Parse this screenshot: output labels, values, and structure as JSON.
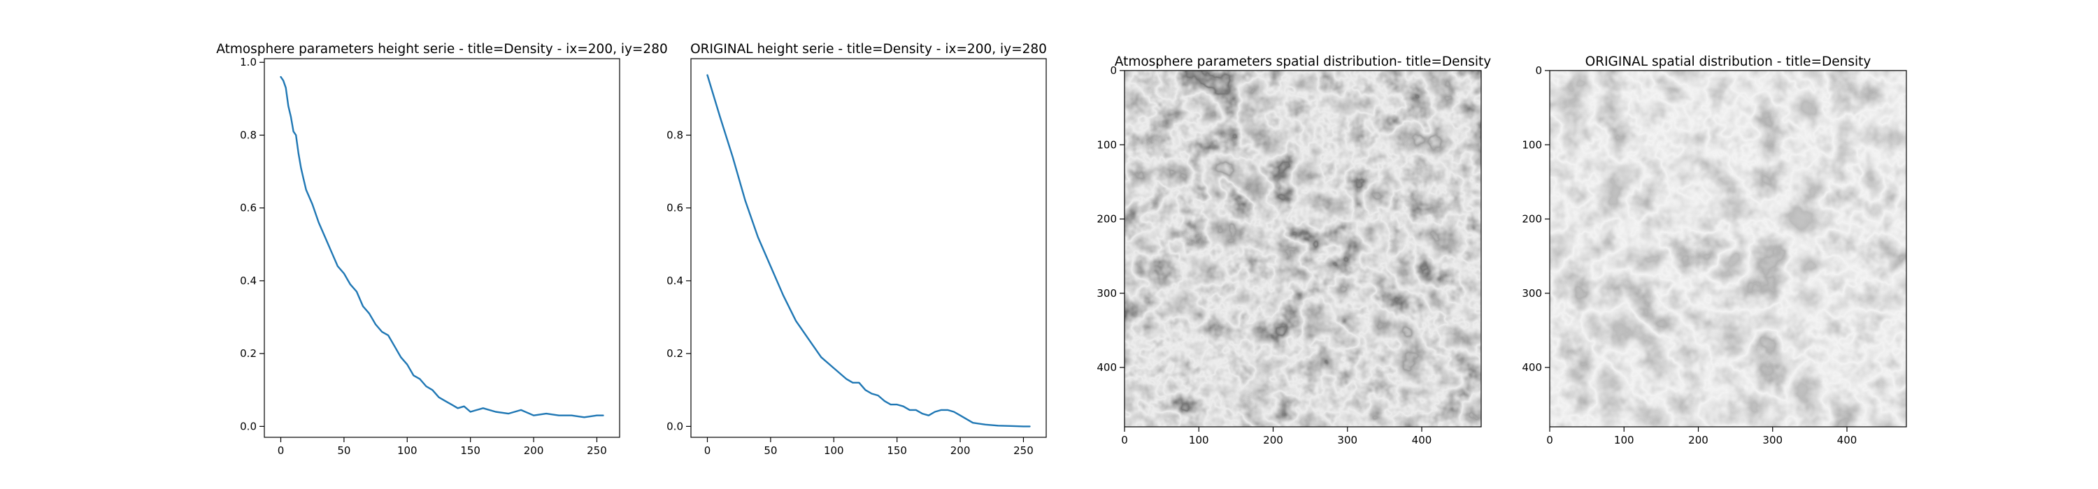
{
  "chart_data": [
    {
      "id": "left-line",
      "type": "line",
      "title": "Atmosphere parameters height serie - title=Density - ix=200, iy=280",
      "xlabel": "",
      "ylabel": "",
      "xlim": [
        -13,
        268
      ],
      "ylim": [
        -0.03,
        1.01
      ],
      "xticks": [
        0,
        50,
        100,
        150,
        200,
        250
      ],
      "yticks": [
        0.0,
        0.2,
        0.4,
        0.6,
        0.8,
        1.0
      ],
      "ytick_labels": [
        "0.0",
        "0.2",
        "0.4",
        "0.6",
        "0.8",
        "1.0"
      ],
      "grid": false,
      "legend": "none",
      "series_color": "#1f77b4",
      "x": [
        0,
        2,
        4,
        6,
        8,
        10,
        12,
        14,
        16,
        18,
        20,
        25,
        30,
        35,
        40,
        45,
        50,
        55,
        60,
        65,
        70,
        75,
        80,
        85,
        90,
        95,
        100,
        105,
        110,
        115,
        120,
        125,
        130,
        135,
        140,
        145,
        150,
        155,
        160,
        170,
        180,
        190,
        200,
        210,
        220,
        230,
        240,
        250,
        255
      ],
      "y": [
        0.96,
        0.95,
        0.93,
        0.88,
        0.85,
        0.81,
        0.8,
        0.75,
        0.71,
        0.68,
        0.65,
        0.61,
        0.56,
        0.52,
        0.48,
        0.44,
        0.42,
        0.39,
        0.37,
        0.33,
        0.31,
        0.28,
        0.26,
        0.25,
        0.22,
        0.19,
        0.17,
        0.14,
        0.13,
        0.11,
        0.1,
        0.08,
        0.07,
        0.06,
        0.05,
        0.055,
        0.04,
        0.045,
        0.05,
        0.04,
        0.035,
        0.045,
        0.03,
        0.035,
        0.03,
        0.03,
        0.025,
        0.03,
        0.03
      ]
    },
    {
      "id": "mid-line",
      "type": "line",
      "title": "ORIGINAL height serie - title=Density - ix=200, iy=280",
      "xlabel": "",
      "ylabel": "",
      "xlim": [
        -13,
        268
      ],
      "ylim": [
        -0.03,
        1.01
      ],
      "xticks": [
        0,
        50,
        100,
        150,
        200,
        250
      ],
      "yticks": [
        0.0,
        0.2,
        0.4,
        0.6,
        0.8
      ],
      "ytick_labels": [
        "0.0",
        "0.2",
        "0.4",
        "0.6",
        "0.8"
      ],
      "grid": false,
      "legend": "none",
      "series_color": "#1f77b4",
      "x": [
        0,
        10,
        20,
        30,
        40,
        50,
        60,
        70,
        80,
        90,
        100,
        110,
        115,
        120,
        125,
        130,
        135,
        140,
        145,
        150,
        155,
        160,
        165,
        170,
        175,
        180,
        185,
        190,
        195,
        200,
        205,
        210,
        220,
        230,
        240,
        250,
        255
      ],
      "y": [
        0.965,
        0.85,
        0.74,
        0.62,
        0.52,
        0.44,
        0.36,
        0.29,
        0.24,
        0.19,
        0.16,
        0.13,
        0.12,
        0.12,
        0.1,
        0.09,
        0.085,
        0.07,
        0.06,
        0.06,
        0.055,
        0.045,
        0.045,
        0.035,
        0.03,
        0.04,
        0.045,
        0.045,
        0.04,
        0.03,
        0.02,
        0.01,
        0.005,
        0.002,
        0.001,
        0.0,
        0.0
      ]
    },
    {
      "id": "left-image",
      "type": "heatmap",
      "title": "Atmosphere parameters spatial distribution- title=Density",
      "xlim": [
        0,
        480
      ],
      "ylim": [
        480,
        0
      ],
      "xticks": [
        0,
        100,
        200,
        300,
        400
      ],
      "yticks": [
        0,
        100,
        200,
        300,
        400
      ],
      "colormap": "gray",
      "seed": 3
    },
    {
      "id": "right-image",
      "type": "heatmap",
      "title": "ORIGINAL spatial distribution - title=Density",
      "xlim": [
        0,
        480
      ],
      "ylim": [
        480,
        0
      ],
      "xticks": [
        0,
        100,
        200,
        300,
        400
      ],
      "yticks": [
        0,
        100,
        200,
        300,
        400
      ],
      "colormap": "gray",
      "seed": 11
    }
  ]
}
